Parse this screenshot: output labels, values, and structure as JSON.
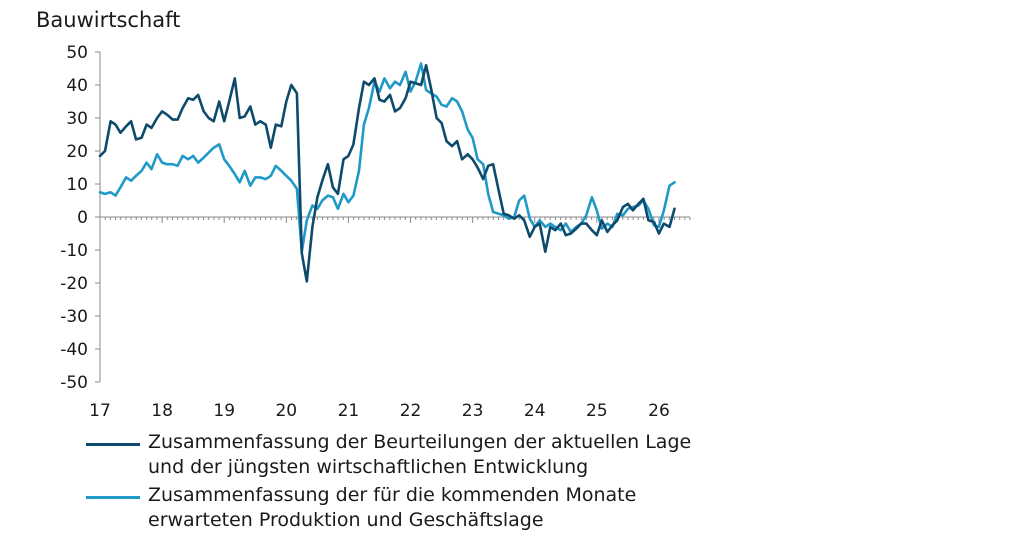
{
  "chart_data": {
    "type": "line",
    "title": "Bauwirtschaft",
    "ylim": [
      -50,
      50
    ],
    "yticks": [
      "50",
      "40",
      "30",
      "20",
      "10",
      "0",
      "-10",
      "-20",
      "-30",
      "-40",
      "-50"
    ],
    "xtick_labels": [
      "17",
      "18",
      "19",
      "20",
      "21",
      "22",
      "23",
      "24",
      "25",
      "26"
    ],
    "xlim": [
      2017.0,
      2026.5
    ],
    "series": [
      {
        "name": "Zusammenfassung der Beurteilungen der aktuellen Lage und der jüngsten wirtschaftlichen Entwicklung",
        "color": "#0e4a6b",
        "points": [
          [
            2017.0,
            18.5
          ],
          [
            2017.08,
            20
          ],
          [
            2017.17,
            29
          ],
          [
            2017.25,
            28
          ],
          [
            2017.33,
            25.5
          ],
          [
            2017.42,
            27.5
          ],
          [
            2017.5,
            29
          ],
          [
            2017.58,
            23.5
          ],
          [
            2017.67,
            24
          ],
          [
            2017.75,
            28
          ],
          [
            2017.83,
            27
          ],
          [
            2017.92,
            30
          ],
          [
            2018.0,
            32
          ],
          [
            2018.08,
            31
          ],
          [
            2018.17,
            29.5
          ],
          [
            2018.25,
            29.5
          ],
          [
            2018.33,
            33
          ],
          [
            2018.42,
            36
          ],
          [
            2018.5,
            35.5
          ],
          [
            2018.58,
            37
          ],
          [
            2018.67,
            32
          ],
          [
            2018.75,
            30
          ],
          [
            2018.83,
            29
          ],
          [
            2018.92,
            35
          ],
          [
            2019.0,
            29
          ],
          [
            2019.08,
            35
          ],
          [
            2019.17,
            42
          ],
          [
            2019.25,
            30
          ],
          [
            2019.33,
            30.5
          ],
          [
            2019.42,
            33.5
          ],
          [
            2019.5,
            28
          ],
          [
            2019.58,
            29
          ],
          [
            2019.67,
            28
          ],
          [
            2019.75,
            21
          ],
          [
            2019.83,
            28
          ],
          [
            2019.92,
            27.5
          ],
          [
            2020.0,
            35
          ],
          [
            2020.08,
            40
          ],
          [
            2020.17,
            37.5
          ],
          [
            2020.25,
            -11
          ],
          [
            2020.33,
            -19.5
          ],
          [
            2020.42,
            -3
          ],
          [
            2020.5,
            6
          ],
          [
            2020.58,
            11
          ],
          [
            2020.67,
            16
          ],
          [
            2020.75,
            9
          ],
          [
            2020.83,
            7
          ],
          [
            2020.92,
            17.5
          ],
          [
            2021.0,
            18.5
          ],
          [
            2021.08,
            22
          ],
          [
            2021.17,
            33
          ],
          [
            2021.25,
            41
          ],
          [
            2021.33,
            40
          ],
          [
            2021.42,
            42
          ],
          [
            2021.5,
            35.5
          ],
          [
            2021.58,
            35
          ],
          [
            2021.67,
            37
          ],
          [
            2021.75,
            32
          ],
          [
            2021.83,
            33
          ],
          [
            2021.92,
            36
          ],
          [
            2022.0,
            41
          ],
          [
            2022.08,
            40.5
          ],
          [
            2022.17,
            40
          ],
          [
            2022.25,
            46
          ],
          [
            2022.33,
            39
          ],
          [
            2022.42,
            30
          ],
          [
            2022.5,
            28.5
          ],
          [
            2022.58,
            23
          ],
          [
            2022.67,
            21.5
          ],
          [
            2022.75,
            23
          ],
          [
            2022.83,
            17.5
          ],
          [
            2022.92,
            19
          ],
          [
            2023.0,
            17.5
          ],
          [
            2023.08,
            15
          ],
          [
            2023.17,
            11.5
          ],
          [
            2023.25,
            15.5
          ],
          [
            2023.33,
            16
          ],
          [
            2023.42,
            8
          ],
          [
            2023.5,
            1
          ],
          [
            2023.58,
            0.5
          ],
          [
            2023.67,
            -0.5
          ],
          [
            2023.75,
            0.5
          ],
          [
            2023.83,
            -1
          ],
          [
            2023.92,
            -6
          ],
          [
            2024.0,
            -3
          ],
          [
            2024.08,
            -2
          ],
          [
            2024.17,
            -10.5
          ],
          [
            2024.25,
            -3
          ],
          [
            2024.33,
            -4
          ],
          [
            2024.42,
            -2
          ],
          [
            2024.5,
            -5.5
          ],
          [
            2024.58,
            -5
          ],
          [
            2024.67,
            -3.5
          ],
          [
            2024.75,
            -2
          ],
          [
            2024.83,
            -2
          ],
          [
            2024.92,
            -4
          ],
          [
            2025.0,
            -5.5
          ],
          [
            2025.08,
            -1
          ],
          [
            2025.17,
            -4.5
          ],
          [
            2025.25,
            -2.5
          ],
          [
            2025.33,
            -1
          ],
          [
            2025.42,
            3
          ],
          [
            2025.5,
            4
          ],
          [
            2025.58,
            2
          ],
          [
            2025.67,
            4
          ],
          [
            2025.75,
            5.5
          ],
          [
            2025.83,
            -1
          ],
          [
            2025.92,
            -1.5
          ],
          [
            2026.0,
            -5
          ],
          [
            2026.08,
            -2
          ],
          [
            2026.17,
            -3
          ],
          [
            2026.25,
            2.5
          ]
        ]
      },
      {
        "name": "Zusammenfassung der für die kommenden Monate erwarteten Produktion und Geschäftslage",
        "color": "#1f9ac8",
        "points": [
          [
            2017.0,
            7.5
          ],
          [
            2017.08,
            7
          ],
          [
            2017.17,
            7.5
          ],
          [
            2017.25,
            6.5
          ],
          [
            2017.33,
            9
          ],
          [
            2017.42,
            12
          ],
          [
            2017.5,
            11
          ],
          [
            2017.58,
            12.5
          ],
          [
            2017.67,
            14
          ],
          [
            2017.75,
            16.5
          ],
          [
            2017.83,
            14.5
          ],
          [
            2017.92,
            19
          ],
          [
            2018.0,
            16.5
          ],
          [
            2018.08,
            16
          ],
          [
            2018.17,
            16
          ],
          [
            2018.25,
            15.5
          ],
          [
            2018.33,
            18.5
          ],
          [
            2018.42,
            17.5
          ],
          [
            2018.5,
            18.5
          ],
          [
            2018.58,
            16.5
          ],
          [
            2018.67,
            18
          ],
          [
            2018.75,
            19.5
          ],
          [
            2018.83,
            21
          ],
          [
            2018.92,
            22
          ],
          [
            2019.0,
            17.5
          ],
          [
            2019.08,
            15.5
          ],
          [
            2019.17,
            13
          ],
          [
            2019.25,
            10.5
          ],
          [
            2019.33,
            14
          ],
          [
            2019.42,
            9.5
          ],
          [
            2019.5,
            12
          ],
          [
            2019.58,
            12
          ],
          [
            2019.67,
            11.5
          ],
          [
            2019.75,
            12.5
          ],
          [
            2019.83,
            15.5
          ],
          [
            2019.92,
            14
          ],
          [
            2020.0,
            12.5
          ],
          [
            2020.08,
            11
          ],
          [
            2020.17,
            8.5
          ],
          [
            2020.25,
            -10.5
          ],
          [
            2020.33,
            -1
          ],
          [
            2020.42,
            3.5
          ],
          [
            2020.5,
            2.5
          ],
          [
            2020.58,
            5
          ],
          [
            2020.67,
            6.5
          ],
          [
            2020.75,
            6
          ],
          [
            2020.83,
            2.5
          ],
          [
            2020.92,
            7
          ],
          [
            2021.0,
            4.5
          ],
          [
            2021.08,
            6.5
          ],
          [
            2021.17,
            14
          ],
          [
            2021.25,
            28
          ],
          [
            2021.33,
            33
          ],
          [
            2021.42,
            41
          ],
          [
            2021.5,
            38
          ],
          [
            2021.58,
            42
          ],
          [
            2021.67,
            39
          ],
          [
            2021.75,
            41
          ],
          [
            2021.83,
            40
          ],
          [
            2021.92,
            44
          ],
          [
            2022.0,
            38
          ],
          [
            2022.08,
            41
          ],
          [
            2022.17,
            46.5
          ],
          [
            2022.25,
            38.5
          ],
          [
            2022.33,
            37.5
          ],
          [
            2022.42,
            36.5
          ],
          [
            2022.5,
            34
          ],
          [
            2022.58,
            33.5
          ],
          [
            2022.67,
            36
          ],
          [
            2022.75,
            35
          ],
          [
            2022.83,
            32
          ],
          [
            2022.92,
            26.5
          ],
          [
            2023.0,
            24
          ],
          [
            2023.08,
            17.5
          ],
          [
            2023.17,
            16
          ],
          [
            2023.25,
            7
          ],
          [
            2023.33,
            1.5
          ],
          [
            2023.42,
            1
          ],
          [
            2023.5,
            0.5
          ],
          [
            2023.58,
            -0.5
          ],
          [
            2023.67,
            0
          ],
          [
            2023.75,
            5
          ],
          [
            2023.83,
            6.5
          ],
          [
            2023.92,
            -0.5
          ],
          [
            2024.0,
            -3
          ],
          [
            2024.08,
            -1
          ],
          [
            2024.17,
            -3
          ],
          [
            2024.25,
            -2
          ],
          [
            2024.33,
            -3
          ],
          [
            2024.42,
            -4
          ],
          [
            2024.5,
            -2
          ],
          [
            2024.58,
            -4.5
          ],
          [
            2024.67,
            -3
          ],
          [
            2024.75,
            -2
          ],
          [
            2024.83,
            0.5
          ],
          [
            2024.92,
            6
          ],
          [
            2025.0,
            2
          ],
          [
            2025.08,
            -3.5
          ],
          [
            2025.17,
            -2
          ],
          [
            2025.25,
            -3
          ],
          [
            2025.33,
            1
          ],
          [
            2025.42,
            0.5
          ],
          [
            2025.5,
            2.5
          ],
          [
            2025.58,
            3
          ],
          [
            2025.67,
            3.5
          ],
          [
            2025.75,
            5
          ],
          [
            2025.83,
            2.5
          ],
          [
            2025.92,
            -2.5
          ],
          [
            2026.0,
            -3
          ],
          [
            2026.08,
            2
          ],
          [
            2026.17,
            9.5
          ],
          [
            2026.25,
            10.5
          ]
        ]
      }
    ]
  }
}
